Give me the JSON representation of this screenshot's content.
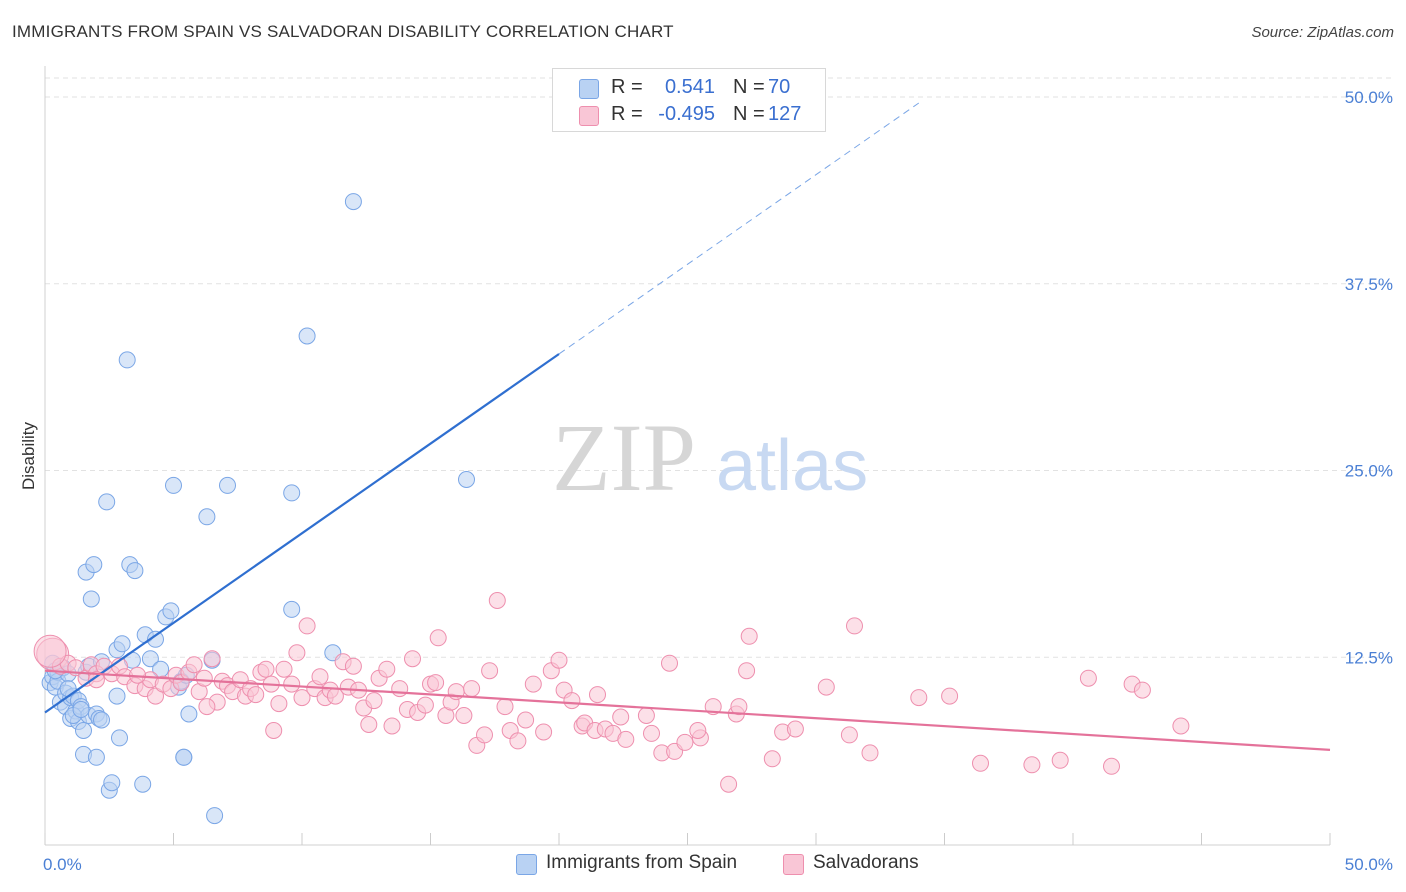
{
  "header": {
    "title": "IMMIGRANTS FROM SPAIN VS SALVADORAN DISABILITY CORRELATION CHART",
    "source": "Source: ZipAtlas.com"
  },
  "watermark": {
    "zip": "ZIP",
    "atlas": "atlas"
  },
  "stats": [
    {
      "r_label": "R =",
      "r_value": "0.541",
      "n_label": "N =",
      "n_value": "70",
      "color": "#b9d2f3",
      "border": "#7aa6e6"
    },
    {
      "r_label": "R =",
      "r_value": "-0.495",
      "n_label": "N =",
      "n_value": "127",
      "color": "#f9c6d6",
      "border": "#ee8fae"
    }
  ],
  "legend": [
    {
      "label": "Immigrants from Spain",
      "color": "#b9d2f3",
      "border": "#7aa6e6"
    },
    {
      "label": "Salvadorans",
      "color": "#f9c6d6",
      "border": "#ee8fae"
    }
  ],
  "chart_data": {
    "type": "scatter",
    "title": "IMMIGRANTS FROM SPAIN VS SALVADORAN DISABILITY CORRELATION CHART",
    "xlabel": "",
    "ylabel": "Disability",
    "xlim": [
      0,
      50
    ],
    "ylim": [
      0,
      50
    ],
    "x_tick_labels": [
      "0.0%",
      "50.0%"
    ],
    "y_tick_labels": [
      "12.5%",
      "25.0%",
      "37.5%",
      "50.0%"
    ],
    "y_ticks": [
      12.5,
      25.0,
      37.5,
      50.0
    ],
    "grid": "horizontal dashed",
    "legend_position": "bottom-center",
    "series": [
      {
        "name": "Immigrants from Spain",
        "color": "#7aa6e6",
        "fill": "#b9d2f3",
        "trend": {
          "x0": 0,
          "y0": 8.8,
          "x1": 20,
          "y1": 32.8,
          "dashed_to_x": 34,
          "dashed_to_y": 49.6,
          "color": "#2f6fd0"
        },
        "points": [
          [
            0.2,
            10.8
          ],
          [
            0.3,
            11.2
          ],
          [
            0.3,
            12.1
          ],
          [
            0.4,
            10.5
          ],
          [
            0.5,
            11.5
          ],
          [
            0.5,
            10.9
          ],
          [
            0.6,
            9.5
          ],
          [
            0.7,
            11.8
          ],
          [
            0.8,
            10.1
          ],
          [
            0.8,
            9.2
          ],
          [
            0.9,
            11.4
          ],
          [
            1.0,
            9.8
          ],
          [
            1.0,
            8.4
          ],
          [
            1.1,
            9.9
          ],
          [
            1.2,
            8.9
          ],
          [
            1.3,
            9.6
          ],
          [
            1.3,
            8.2
          ],
          [
            1.4,
            9.2
          ],
          [
            1.5,
            7.6
          ],
          [
            1.5,
            6.0
          ],
          [
            1.6,
            11.5
          ],
          [
            1.6,
            18.2
          ],
          [
            1.7,
            8.6
          ],
          [
            1.7,
            11.9
          ],
          [
            1.8,
            16.4
          ],
          [
            1.9,
            18.7
          ],
          [
            2.0,
            8.7
          ],
          [
            2.0,
            5.8
          ],
          [
            2.1,
            8.4
          ],
          [
            2.2,
            12.2
          ],
          [
            2.4,
            22.9
          ],
          [
            2.5,
            3.6
          ],
          [
            2.6,
            4.1
          ],
          [
            2.8,
            9.9
          ],
          [
            2.8,
            13.0
          ],
          [
            2.9,
            7.1
          ],
          [
            3.0,
            13.4
          ],
          [
            3.2,
            32.4
          ],
          [
            3.3,
            18.7
          ],
          [
            3.4,
            12.3
          ],
          [
            3.5,
            18.3
          ],
          [
            3.8,
            4.0
          ],
          [
            3.9,
            14.0
          ],
          [
            4.1,
            12.4
          ],
          [
            4.3,
            13.7
          ],
          [
            4.5,
            11.7
          ],
          [
            4.7,
            15.2
          ],
          [
            4.9,
            15.6
          ],
          [
            5.0,
            24.0
          ],
          [
            5.2,
            10.5
          ],
          [
            5.3,
            10.9
          ],
          [
            5.4,
            5.8
          ],
          [
            5.5,
            11.3
          ],
          [
            5.6,
            8.7
          ],
          [
            6.3,
            21.9
          ],
          [
            6.5,
            12.3
          ],
          [
            6.6,
            1.9
          ],
          [
            7.1,
            24.0
          ],
          [
            9.6,
            23.5
          ],
          [
            9.6,
            15.7
          ],
          [
            10.2,
            34.0
          ],
          [
            11.2,
            12.8
          ],
          [
            12.0,
            43.0
          ],
          [
            16.4,
            24.4
          ],
          [
            5.4,
            5.8
          ],
          [
            2.2,
            8.3
          ],
          [
            1.1,
            8.6
          ],
          [
            0.4,
            11.6
          ],
          [
            0.9,
            10.4
          ],
          [
            1.4,
            9.0
          ]
        ]
      },
      {
        "name": "Salvadorans",
        "color": "#ee8fae",
        "fill": "#f9c6d6",
        "trend": {
          "x0": 0,
          "y0": 11.6,
          "x1": 50,
          "y1": 6.3,
          "color": "#e4729a"
        },
        "points": [
          [
            0.3,
            12.7
          ],
          [
            0.6,
            11.9
          ],
          [
            0.9,
            12.1
          ],
          [
            1.2,
            11.8
          ],
          [
            1.6,
            11.1
          ],
          [
            1.8,
            12.0
          ],
          [
            2.0,
            11.4
          ],
          [
            2.3,
            11.9
          ],
          [
            2.6,
            11.4
          ],
          [
            2.9,
            11.9
          ],
          [
            3.1,
            11.2
          ],
          [
            3.5,
            10.6
          ],
          [
            3.9,
            10.4
          ],
          [
            4.1,
            11.0
          ],
          [
            4.3,
            9.9
          ],
          [
            4.6,
            10.7
          ],
          [
            4.9,
            10.4
          ],
          [
            5.1,
            11.3
          ],
          [
            5.3,
            10.8
          ],
          [
            5.6,
            11.5
          ],
          [
            5.8,
            12.0
          ],
          [
            6.0,
            10.2
          ],
          [
            6.2,
            11.1
          ],
          [
            6.5,
            12.4
          ],
          [
            6.7,
            9.5
          ],
          [
            6.9,
            10.9
          ],
          [
            7.1,
            10.6
          ],
          [
            7.3,
            10.2
          ],
          [
            7.6,
            11.0
          ],
          [
            7.8,
            9.9
          ],
          [
            8.0,
            10.4
          ],
          [
            8.2,
            10.0
          ],
          [
            8.4,
            11.5
          ],
          [
            8.6,
            11.7
          ],
          [
            8.8,
            10.7
          ],
          [
            8.9,
            7.6
          ],
          [
            9.1,
            9.4
          ],
          [
            9.3,
            11.7
          ],
          [
            9.6,
            10.7
          ],
          [
            9.8,
            12.8
          ],
          [
            10.0,
            9.8
          ],
          [
            10.2,
            14.6
          ],
          [
            10.5,
            10.4
          ],
          [
            10.7,
            11.2
          ],
          [
            10.9,
            9.8
          ],
          [
            11.1,
            10.3
          ],
          [
            11.3,
            9.9
          ],
          [
            11.6,
            12.2
          ],
          [
            11.8,
            10.5
          ],
          [
            12.0,
            11.9
          ],
          [
            12.2,
            10.3
          ],
          [
            12.4,
            9.1
          ],
          [
            12.6,
            8.0
          ],
          [
            12.8,
            9.6
          ],
          [
            13.0,
            11.1
          ],
          [
            13.3,
            11.7
          ],
          [
            13.5,
            7.9
          ],
          [
            13.8,
            10.4
          ],
          [
            14.1,
            9.0
          ],
          [
            14.3,
            12.4
          ],
          [
            14.5,
            8.8
          ],
          [
            14.8,
            9.3
          ],
          [
            15.0,
            10.7
          ],
          [
            15.2,
            10.8
          ],
          [
            15.3,
            13.8
          ],
          [
            15.6,
            8.6
          ],
          [
            15.8,
            9.5
          ],
          [
            16.0,
            10.2
          ],
          [
            16.3,
            8.6
          ],
          [
            16.6,
            10.4
          ],
          [
            16.8,
            6.6
          ],
          [
            17.1,
            7.3
          ],
          [
            17.3,
            11.6
          ],
          [
            17.6,
            16.3
          ],
          [
            17.9,
            9.2
          ],
          [
            18.1,
            7.6
          ],
          [
            18.4,
            6.9
          ],
          [
            18.7,
            8.3
          ],
          [
            19.0,
            10.7
          ],
          [
            19.4,
            7.5
          ],
          [
            19.7,
            11.6
          ],
          [
            20.0,
            12.3
          ],
          [
            20.2,
            10.3
          ],
          [
            20.5,
            9.6
          ],
          [
            20.9,
            7.9
          ],
          [
            21.0,
            8.1
          ],
          [
            21.4,
            7.6
          ],
          [
            21.5,
            10.0
          ],
          [
            21.8,
            7.7
          ],
          [
            22.1,
            7.4
          ],
          [
            22.4,
            8.5
          ],
          [
            22.6,
            7.0
          ],
          [
            23.4,
            8.6
          ],
          [
            23.6,
            7.4
          ],
          [
            24.0,
            6.1
          ],
          [
            24.3,
            12.1
          ],
          [
            24.5,
            6.2
          ],
          [
            24.9,
            6.8
          ],
          [
            25.5,
            7.1
          ],
          [
            26.0,
            9.2
          ],
          [
            26.6,
            4.0
          ],
          [
            26.9,
            8.7
          ],
          [
            27.0,
            9.2
          ],
          [
            27.3,
            11.6
          ],
          [
            27.4,
            13.9
          ],
          [
            28.3,
            5.7
          ],
          [
            28.7,
            7.5
          ],
          [
            29.2,
            7.7
          ],
          [
            30.4,
            10.5
          ],
          [
            31.3,
            7.3
          ],
          [
            31.5,
            14.6
          ],
          [
            32.1,
            6.1
          ],
          [
            34.0,
            9.8
          ],
          [
            35.2,
            9.9
          ],
          [
            36.4,
            5.4
          ],
          [
            38.4,
            5.3
          ],
          [
            39.5,
            5.6
          ],
          [
            40.6,
            11.1
          ],
          [
            41.5,
            5.2
          ],
          [
            42.3,
            10.7
          ],
          [
            42.7,
            10.3
          ],
          [
            44.2,
            7.9
          ],
          [
            3.6,
            11.3
          ],
          [
            6.3,
            9.2
          ],
          [
            0.2,
            12.9
          ],
          [
            2.0,
            11.0
          ],
          [
            25.4,
            7.6
          ]
        ]
      }
    ]
  }
}
